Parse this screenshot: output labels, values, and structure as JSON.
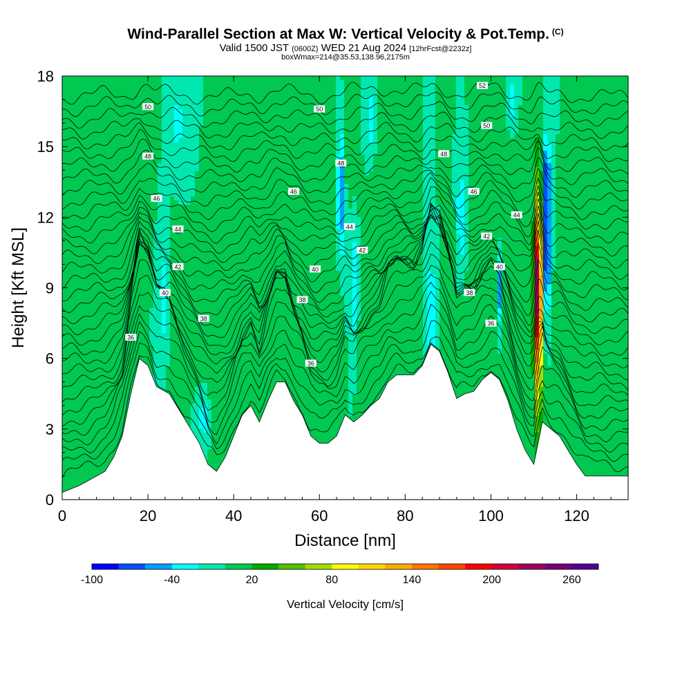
{
  "header": {
    "title": "Wind-Parallel Section at Max W: Vertical Velocity & Pot.Temp.",
    "title_mark": "(C)",
    "subtitle_main_a": "Valid 1500 JST",
    "subtitle_small_a": "(0600Z)",
    "subtitle_main_b": "WED 21 Aug 2024",
    "subtitle_small_b": "[12hrFcst@2232z]",
    "subline": "boxWmax=214@35.53,138.96,2175m"
  },
  "chart_data": {
    "type": "heatmap",
    "xlabel": "Distance [nm]",
    "ylabel": "Height [Kft MSL]",
    "xlim": [
      0,
      132
    ],
    "ylim": [
      0,
      18
    ],
    "x_ticks": [
      0,
      20,
      40,
      60,
      80,
      100,
      120
    ],
    "y_ticks": [
      0,
      3,
      6,
      9,
      12,
      15,
      18
    ],
    "background_field_value_cms": 0,
    "colorbar": {
      "label": "Vertical Velocity [cm/s]",
      "tick_labels": [
        "-100",
        "-40",
        "20",
        "80",
        "140",
        "200",
        "260"
      ],
      "tick_values": [
        -100,
        -40,
        20,
        80,
        140,
        200,
        260
      ],
      "levels": [
        -100,
        -80,
        -60,
        -40,
        -20,
        0,
        20,
        40,
        60,
        80,
        100,
        120,
        140,
        160,
        180,
        200,
        220,
        240,
        260,
        280
      ],
      "colors": [
        "#0000ff",
        "#0050ff",
        "#00a0ff",
        "#00ffff",
        "#00e8b0",
        "#00c850",
        "#00aa00",
        "#50c000",
        "#a0dc00",
        "#ffff00",
        "#ffd700",
        "#ffaa00",
        "#ff7800",
        "#ff4600",
        "#ff0000",
        "#d2003c",
        "#a0005a",
        "#780078",
        "#500096"
      ]
    },
    "terrain_kft": [
      [
        0,
        0.3
      ],
      [
        4,
        0.6
      ],
      [
        7,
        0.9
      ],
      [
        10,
        1.2
      ],
      [
        12,
        1.8
      ],
      [
        14,
        2.7
      ],
      [
        16,
        4.5
      ],
      [
        18,
        6.0
      ],
      [
        20,
        5.7
      ],
      [
        22,
        4.8
      ],
      [
        25,
        4.5
      ],
      [
        27,
        3.9
      ],
      [
        30,
        3.0
      ],
      [
        32,
        2.4
      ],
      [
        34,
        1.5
      ],
      [
        36,
        1.2
      ],
      [
        38,
        1.8
      ],
      [
        40,
        2.7
      ],
      [
        42,
        3.6
      ],
      [
        44,
        4.0
      ],
      [
        46,
        3.3
      ],
      [
        48,
        4.2
      ],
      [
        50,
        5.0
      ],
      [
        52,
        5.0
      ],
      [
        54,
        4.2
      ],
      [
        56,
        3.6
      ],
      [
        58,
        2.7
      ],
      [
        60,
        2.4
      ],
      [
        62,
        2.4
      ],
      [
        64,
        2.7
      ],
      [
        66,
        3.6
      ],
      [
        68,
        3.3
      ],
      [
        70,
        3.6
      ],
      [
        72,
        4.0
      ],
      [
        74,
        4.3
      ],
      [
        76,
        5.0
      ],
      [
        78,
        5.3
      ],
      [
        82,
        5.3
      ],
      [
        84,
        5.7
      ],
      [
        86,
        6.6
      ],
      [
        88,
        6.3
      ],
      [
        90,
        5.4
      ],
      [
        92,
        4.3
      ],
      [
        94,
        4.5
      ],
      [
        96,
        4.6
      ],
      [
        98,
        5.1
      ],
      [
        100,
        5.4
      ],
      [
        102,
        5.1
      ],
      [
        104,
        4.2
      ],
      [
        106,
        3.0
      ],
      [
        108,
        2.1
      ],
      [
        110,
        1.5
      ],
      [
        111,
        2.4
      ],
      [
        112,
        3.3
      ],
      [
        114,
        3.0
      ],
      [
        116,
        2.7
      ],
      [
        118,
        2.1
      ],
      [
        120,
        1.5
      ],
      [
        122,
        1.0
      ],
      [
        126,
        1.0
      ],
      [
        128,
        1.0
      ],
      [
        130,
        1.0
      ],
      [
        132,
        1.0
      ]
    ],
    "updrafts": [
      {
        "x": 2,
        "z": 6,
        "rx": 2.5,
        "rz": 5,
        "w": 10
      },
      {
        "x": 10,
        "z": 10,
        "rx": 2.5,
        "rz": 7,
        "w": 12
      },
      {
        "x": 19,
        "z": 15,
        "rx": 1.5,
        "rz": 3,
        "w": 12
      },
      {
        "x": 26,
        "z": 7,
        "rx": 2,
        "rz": 4,
        "w": 12
      },
      {
        "x": 36,
        "z": 6,
        "rx": 3,
        "rz": 3,
        "w": 12
      },
      {
        "x": 50,
        "z": 8,
        "rx": 2,
        "rz": 6,
        "w": 10
      },
      {
        "x": 58,
        "z": 4,
        "rx": 4,
        "rz": 2,
        "w": 12
      },
      {
        "x": 63,
        "z": 8,
        "rx": 2,
        "rz": 4,
        "w": 12
      },
      {
        "x": 67.5,
        "z": 15,
        "rx": 2,
        "rz": 3,
        "w": 12
      },
      {
        "x": 70,
        "z": 6,
        "rx": 1.8,
        "rz": 3,
        "w": 12
      },
      {
        "x": 73,
        "z": 10,
        "rx": 2,
        "rz": 4,
        "w": 12
      },
      {
        "x": 74,
        "z": 14,
        "rx": 3,
        "rz": 5,
        "w": 12
      },
      {
        "x": 79,
        "z": 8,
        "rx": 4,
        "rz": 3,
        "w": 12
      },
      {
        "x": 90,
        "z": 9,
        "rx": 1.5,
        "rz": 4,
        "w": 12
      },
      {
        "x": 94,
        "z": 6,
        "rx": 3,
        "rz": 3,
        "w": 12
      },
      {
        "x": 100,
        "z": 13,
        "rx": 3,
        "rz": 5,
        "w": 12
      },
      {
        "x": 106,
        "z": 9,
        "rx": 2.5,
        "rz": 5,
        "w": 12
      },
      {
        "x": 116,
        "z": 7,
        "rx": 2,
        "rz": 3,
        "w": 12
      },
      {
        "x": 124,
        "z": 11,
        "rx": 2,
        "rz": 5,
        "w": 10
      },
      {
        "x": 111,
        "z": 8.5,
        "rx": 0.9,
        "rz": 4.5,
        "w": 214
      },
      {
        "x": 111,
        "z": 9.5,
        "rx": 0.6,
        "rz": 2,
        "w": 60
      }
    ],
    "downdrafts": [
      {
        "x": 24,
        "z": 8.5,
        "rx": 1.2,
        "rz": 2.5,
        "w": -35
      },
      {
        "x": 27,
        "z": 16,
        "rx": 1.5,
        "rz": 2,
        "w": -25
      },
      {
        "x": 33,
        "z": 3.5,
        "rx": 1.2,
        "rz": 1,
        "w": -35
      },
      {
        "x": 65,
        "z": 13,
        "rx": 0.8,
        "rz": 2.5,
        "w": -70
      },
      {
        "x": 68,
        "z": 9,
        "rx": 1,
        "rz": 3,
        "w": -35
      },
      {
        "x": 72,
        "z": 16,
        "rx": 1.5,
        "rz": 2,
        "w": -35
      },
      {
        "x": 86,
        "z": 8,
        "rx": 1,
        "rz": 3,
        "w": -35
      },
      {
        "x": 93,
        "z": 12,
        "rx": 1,
        "rz": 2.5,
        "w": -35
      },
      {
        "x": 102,
        "z": 9,
        "rx": 0.6,
        "rz": 1.5,
        "w": -60
      },
      {
        "x": 105,
        "z": 17,
        "rx": 1,
        "rz": 1,
        "w": -35
      },
      {
        "x": 113,
        "z": 11,
        "rx": 0.9,
        "rz": 3,
        "w": -95
      },
      {
        "x": 113,
        "z": 14,
        "rx": 0.8,
        "rz": 1.5,
        "w": -45
      }
    ],
    "theta_labels": [
      {
        "x": 20,
        "z": 16.7,
        "text": "50"
      },
      {
        "x": 60,
        "z": 16.6,
        "text": "50"
      },
      {
        "x": 98,
        "z": 17.6,
        "text": "52"
      },
      {
        "x": 99,
        "z": 15.9,
        "text": "50"
      },
      {
        "x": 20,
        "z": 14.6,
        "text": "48"
      },
      {
        "x": 65,
        "z": 14.3,
        "text": "48"
      },
      {
        "x": 89,
        "z": 14.7,
        "text": "48"
      },
      {
        "x": 22,
        "z": 12.8,
        "text": "46"
      },
      {
        "x": 54,
        "z": 13.1,
        "text": "46"
      },
      {
        "x": 96,
        "z": 13.1,
        "text": "46"
      },
      {
        "x": 27,
        "z": 11.5,
        "text": "44"
      },
      {
        "x": 67,
        "z": 11.6,
        "text": "44"
      },
      {
        "x": 106,
        "z": 12.1,
        "text": "44"
      },
      {
        "x": 27,
        "z": 9.9,
        "text": "42"
      },
      {
        "x": 70,
        "z": 10.6,
        "text": "42"
      },
      {
        "x": 99,
        "z": 11.2,
        "text": "42"
      },
      {
        "x": 24,
        "z": 8.8,
        "text": "40"
      },
      {
        "x": 59,
        "z": 9.8,
        "text": "40"
      },
      {
        "x": 102,
        "z": 9.9,
        "text": "40"
      },
      {
        "x": 33,
        "z": 7.7,
        "text": "38"
      },
      {
        "x": 56,
        "z": 8.5,
        "text": "38"
      },
      {
        "x": 95,
        "z": 8.8,
        "text": "38"
      },
      {
        "x": 16,
        "z": 6.9,
        "text": "36"
      },
      {
        "x": 58,
        "z": 5.8,
        "text": "36"
      },
      {
        "x": 100,
        "z": 7.5,
        "text": "36"
      }
    ]
  }
}
